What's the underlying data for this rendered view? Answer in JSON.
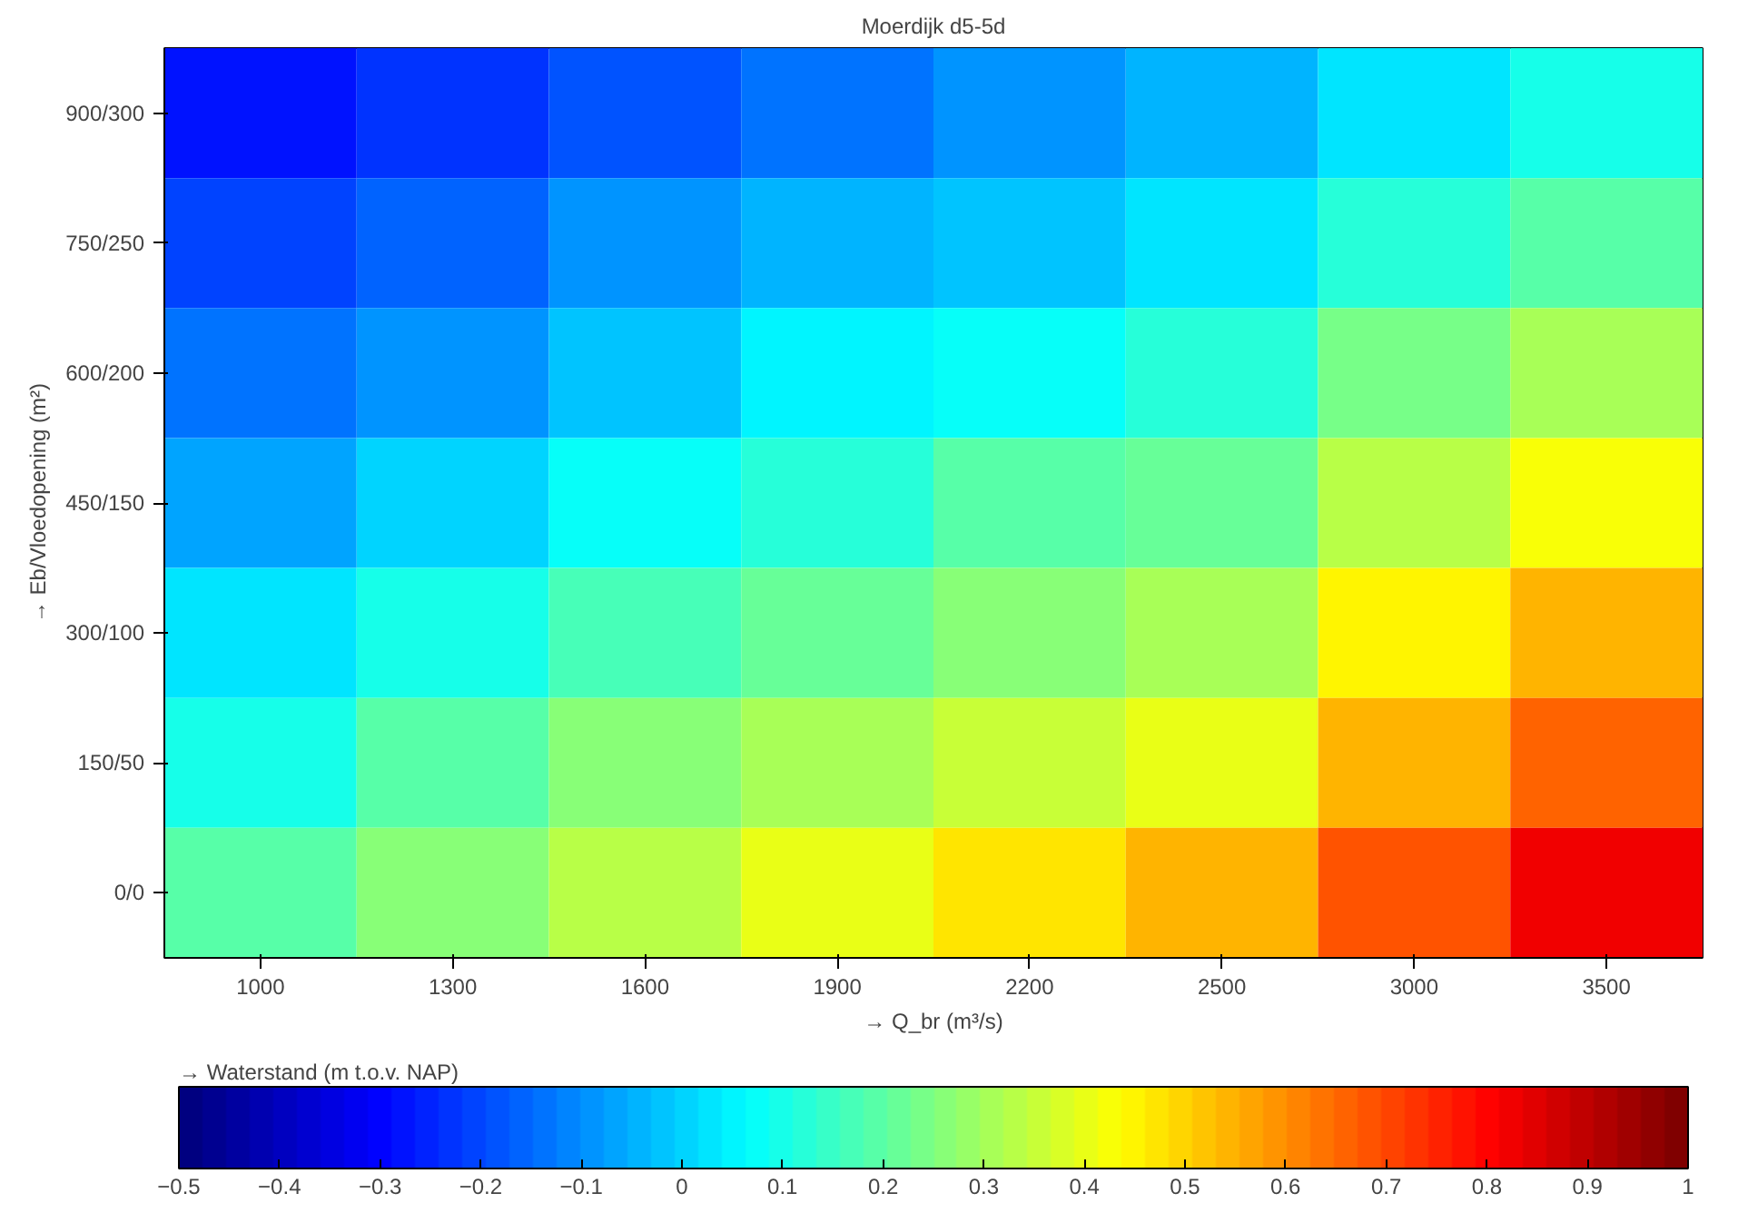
{
  "chart_data": {
    "type": "heatmap",
    "title": "Moerdijk d5-5d",
    "xlabel": "→ Q_br (m³/s)",
    "ylabel": "→ Eb/Vloedopening (m²)",
    "clabel": "→ Waterstand (m t.o.v. NAP)",
    "categories": [
      "1000",
      "1300",
      "1600",
      "1900",
      "2200",
      "2500",
      "3000",
      "3500"
    ],
    "y_categories": [
      "900/300",
      "750/250",
      "600/200",
      "450/150",
      "300/100",
      "150/50",
      "0/0"
    ],
    "cells": [
      [
        -0.27,
        -0.23,
        -0.18,
        -0.13,
        -0.09,
        -0.05,
        0.03,
        0.1
      ],
      [
        -0.21,
        -0.15,
        -0.1,
        -0.05,
        -0.01,
        0.03,
        0.12,
        0.2
      ],
      [
        -0.13,
        -0.08,
        -0.02,
        0.04,
        0.08,
        0.12,
        0.23,
        0.31
      ],
      [
        -0.06,
        0.01,
        0.08,
        0.13,
        0.18,
        0.22,
        0.33,
        0.43
      ],
      [
        0.02,
        0.09,
        0.16,
        0.22,
        0.27,
        0.32,
        0.44,
        0.55
      ],
      [
        0.1,
        0.18,
        0.25,
        0.31,
        0.36,
        0.41,
        0.55,
        0.67
      ],
      [
        0.18,
        0.26,
        0.33,
        0.4,
        0.47,
        0.54,
        0.69,
        0.82
      ]
    ],
    "clim": [
      -0.5,
      1
    ],
    "cticks": [
      -0.5,
      -0.4,
      -0.3,
      -0.2,
      -0.1,
      0,
      0.1,
      0.2,
      0.3,
      0.4,
      0.5,
      0.6,
      0.7,
      0.8,
      0.9,
      1
    ]
  }
}
